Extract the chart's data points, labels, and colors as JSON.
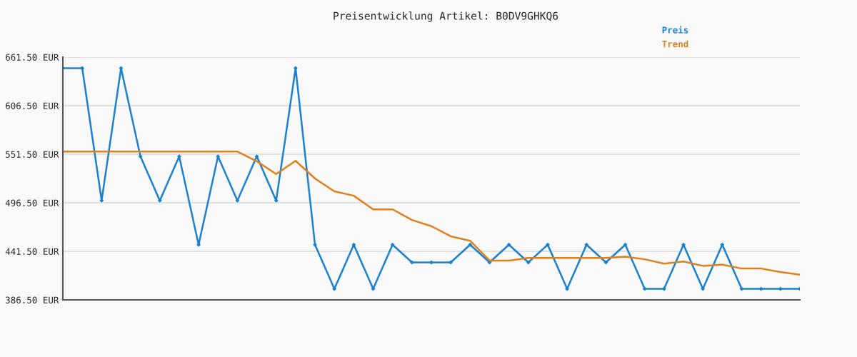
{
  "chart_data": {
    "type": "line",
    "title": "Preisentwicklung Artikel: B0DV9GHKQ6",
    "categories": [
      null,
      null,
      null,
      null,
      null,
      null,
      null,
      null,
      null,
      null,
      null,
      null,
      null,
      null,
      null,
      null,
      null,
      null,
      null,
      null,
      null,
      null,
      null,
      null,
      null,
      null,
      null,
      null,
      null,
      null,
      null,
      null,
      null,
      null,
      null,
      null,
      null,
      null,
      null
    ],
    "series": [
      {
        "name": "Preis",
        "color": "#1a80d0",
        "marker": "diamond",
        "values": [
          649,
          649,
          499,
          649,
          549,
          499,
          549,
          449,
          549,
          499,
          549,
          499,
          649,
          449,
          399,
          449,
          399,
          449,
          429,
          429,
          429,
          449,
          429,
          449,
          429,
          449,
          399,
          449,
          429,
          449,
          399,
          399,
          449,
          399,
          449,
          399,
          399,
          399,
          399
        ]
      },
      {
        "name": "Trend",
        "color": "#e0801a",
        "marker": "none",
        "values": [
          554.5,
          554.5,
          554.5,
          554.5,
          554.5,
          554.5,
          554.5,
          554.5,
          554.5,
          554.5,
          543.5,
          529,
          544,
          524,
          509.5,
          504.5,
          489,
          489,
          477,
          470,
          458.5,
          453.5,
          431,
          431,
          434,
          434,
          434,
          434,
          434,
          435.5,
          432.5,
          427.5,
          430,
          425,
          426.5,
          422,
          422,
          418,
          415
        ]
      }
    ],
    "ylim": [
      386.5,
      661.5
    ],
    "yticks": [
      {
        "value": 386.5,
        "label": "386.50 EUR"
      },
      {
        "value": 441.5,
        "label": "441.50 EUR"
      },
      {
        "value": 496.5,
        "label": "496.50 EUR"
      },
      {
        "value": 551.5,
        "label": "551.50 EUR"
      },
      {
        "value": 606.5,
        "label": "606.50 EUR"
      },
      {
        "value": 661.5,
        "label": "661.50 EUR"
      }
    ],
    "grid": "y",
    "legend": "top right"
  }
}
